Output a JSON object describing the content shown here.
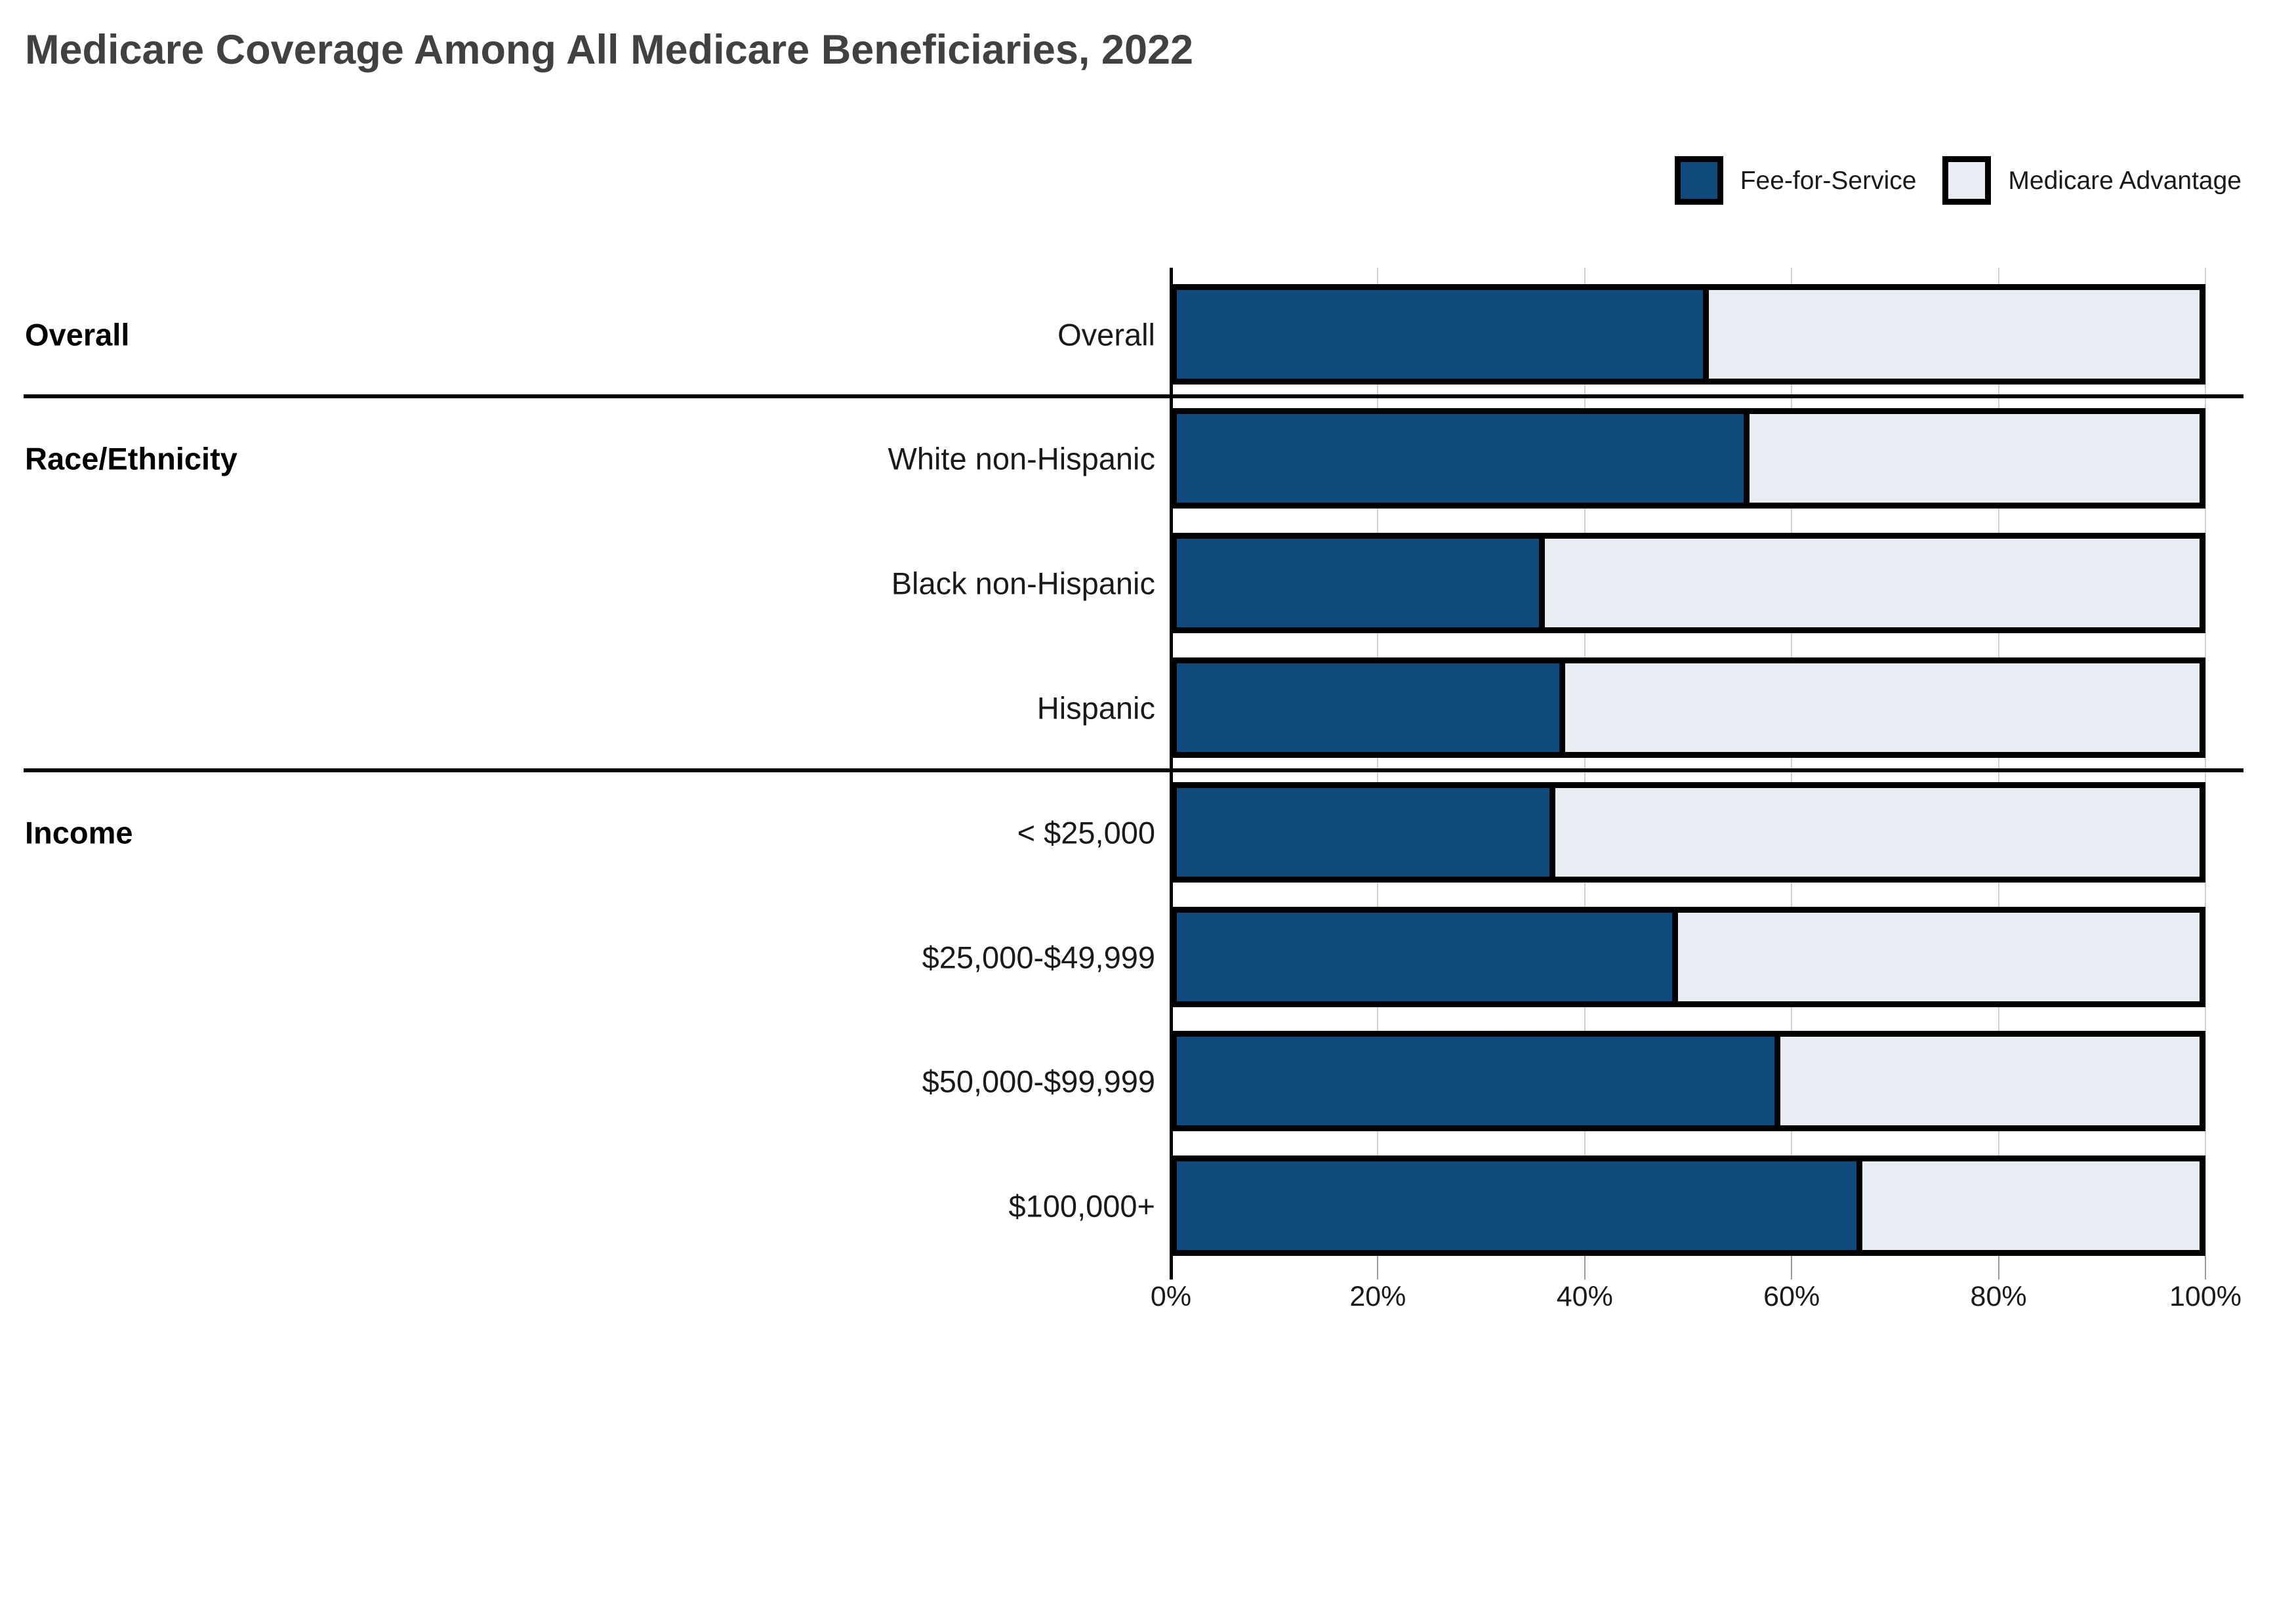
{
  "title": "Medicare Coverage Among All Medicare Beneficiaries, 2022",
  "legend": {
    "items": [
      {
        "label": "Fee-for-Service",
        "color": "#0e4a7c"
      },
      {
        "label": "Medicare Advantage",
        "color": "#e8ecf3"
      }
    ]
  },
  "chart_data": {
    "type": "bar",
    "orientation": "horizontal",
    "stacked": true,
    "unit": "percent",
    "title": "Medicare Coverage Among All Medicare Beneficiaries, 2022",
    "xlim": [
      0,
      100
    ],
    "x_ticks": [
      {
        "value": 0,
        "label": "0%"
      },
      {
        "value": 20,
        "label": "20%"
      },
      {
        "value": 40,
        "label": "40%"
      },
      {
        "value": 60,
        "label": "60%"
      },
      {
        "value": 80,
        "label": "80%"
      },
      {
        "value": 100,
        "label": "100%"
      }
    ],
    "grid": true,
    "legend_position": "top-right",
    "categories": [
      "Overall",
      "White non-Hispanic",
      "Black non-Hispanic",
      "Hispanic",
      "< $25,000",
      "$25,000-$49,999",
      "$50,000-$99,999",
      "$100,000+"
    ],
    "series": [
      {
        "name": "Fee-for-Service",
        "color": "#0e4a7c",
        "values": [
          52,
          56,
          36,
          38,
          37,
          49,
          59,
          67
        ]
      },
      {
        "name": "Medicare Advantage",
        "color": "#e8ecf3",
        "values": [
          48,
          44,
          64,
          62,
          63,
          51,
          41,
          33
        ]
      }
    ],
    "groups": [
      {
        "label": "Overall",
        "rows": [
          {
            "label": "Overall",
            "ffs": 52,
            "ma": 48
          }
        ]
      },
      {
        "label": "Race/Ethnicity",
        "rows": [
          {
            "label": "White non-Hispanic",
            "ffs": 56,
            "ma": 44
          },
          {
            "label": "Black non-Hispanic",
            "ffs": 36,
            "ma": 64
          },
          {
            "label": "Hispanic",
            "ffs": 38,
            "ma": 62
          }
        ]
      },
      {
        "label": "Income",
        "rows": [
          {
            "label": "< $25,000",
            "ffs": 37,
            "ma": 63
          },
          {
            "label": "$25,000-$49,999",
            "ffs": 49,
            "ma": 51
          },
          {
            "label": "$50,000-$99,999",
            "ffs": 59,
            "ma": 41
          },
          {
            "label": "$100,000+",
            "ffs": 67,
            "ma": 33
          }
        ]
      }
    ],
    "colors": {
      "fee_for_service": "#0e4a7c",
      "medicare_advantage": "#e8ecf3",
      "bar_border": "#000000",
      "gridline": "#cfcfcf",
      "title_text": "#414042",
      "label_text": "#1a1a1a"
    }
  }
}
